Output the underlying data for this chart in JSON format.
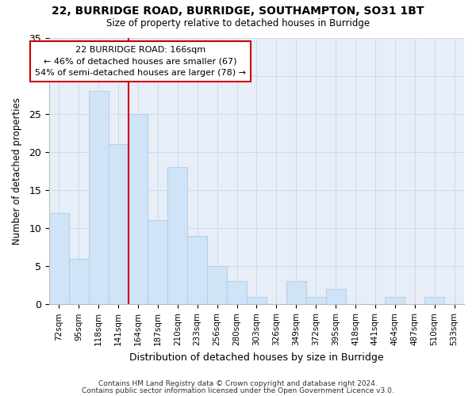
{
  "title1": "22, BURRIDGE ROAD, BURRIDGE, SOUTHAMPTON, SO31 1BT",
  "title2": "Size of property relative to detached houses in Burridge",
  "xlabel": "Distribution of detached houses by size in Burridge",
  "ylabel": "Number of detached properties",
  "categories": [
    "72sqm",
    "95sqm",
    "118sqm",
    "141sqm",
    "164sqm",
    "187sqm",
    "210sqm",
    "233sqm",
    "256sqm",
    "280sqm",
    "303sqm",
    "326sqm",
    "349sqm",
    "372sqm",
    "395sqm",
    "418sqm",
    "441sqm",
    "464sqm",
    "487sqm",
    "510sqm",
    "533sqm"
  ],
  "values": [
    12,
    6,
    28,
    21,
    25,
    11,
    18,
    9,
    5,
    3,
    1,
    0,
    3,
    1,
    2,
    0,
    0,
    1,
    0,
    1,
    0
  ],
  "bar_color": "#b8cfe8",
  "bar_face_color": "#d0e4f7",
  "grid_color": "#d0d8e8",
  "bg_color": "#e8eef8",
  "fig_bg_color": "#ffffff",
  "vline_color": "#cc0000",
  "vline_x_index": 4,
  "annotation_lines": [
    "22 BURRIDGE ROAD: 166sqm",
    "← 46% of detached houses are smaller (67)",
    "54% of semi-detached houses are larger (78) →"
  ],
  "annotation_box_edge_color": "#cc0000",
  "annotation_box_face_color": "#ffffff",
  "ylim": [
    0,
    35
  ],
  "yticks": [
    0,
    5,
    10,
    15,
    20,
    25,
    30,
    35
  ],
  "footnote1": "Contains HM Land Registry data © Crown copyright and database right 2024.",
  "footnote2": "Contains public sector information licensed under the Open Government Licence v3.0."
}
